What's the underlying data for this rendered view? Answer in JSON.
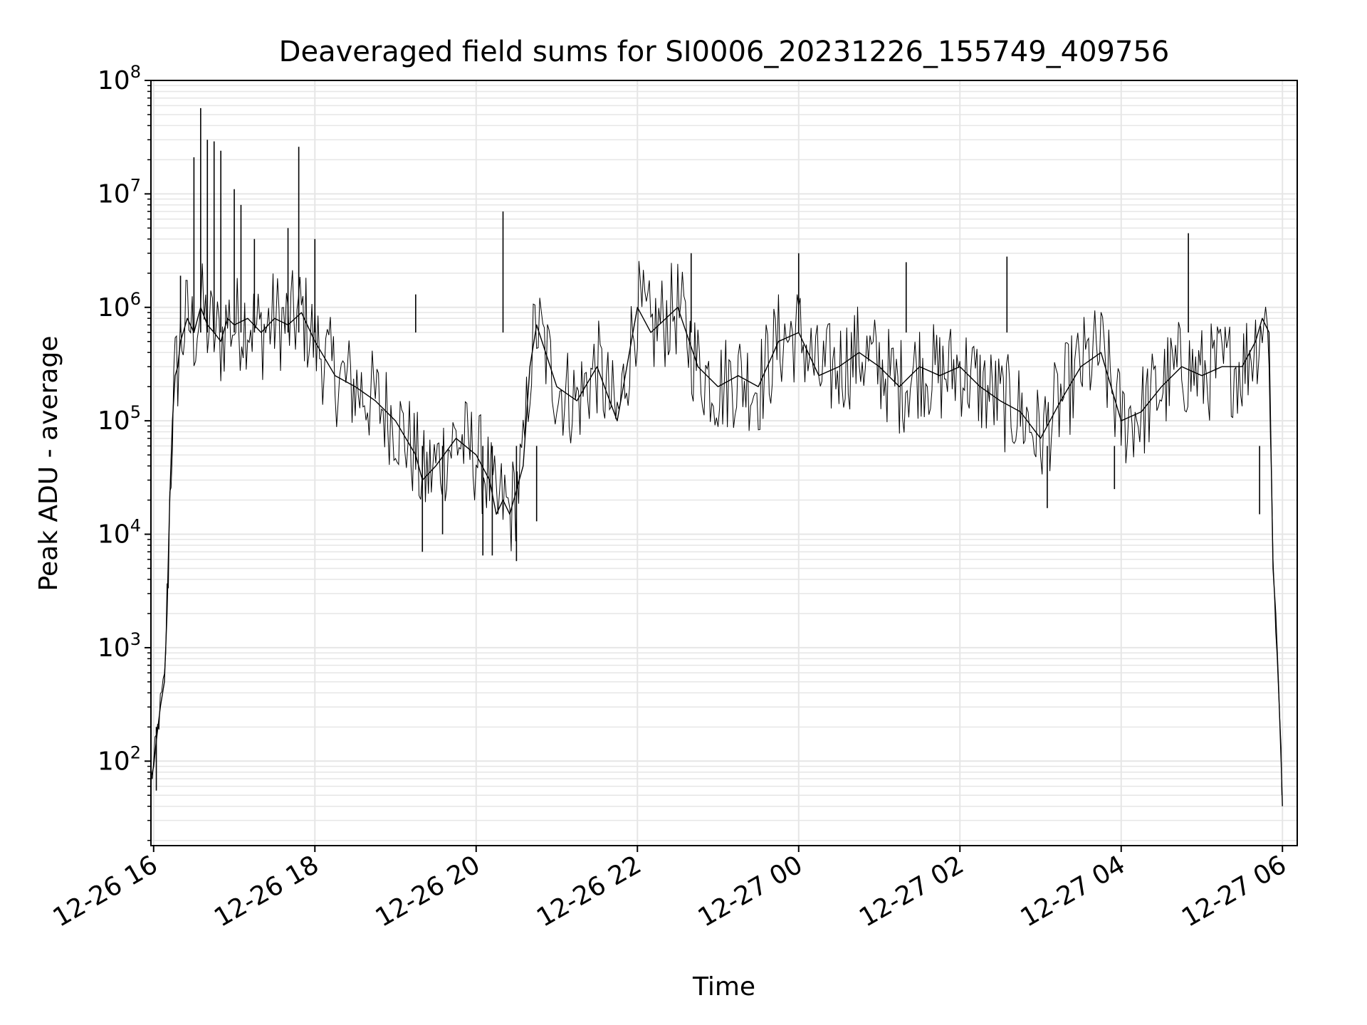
{
  "chart_data": {
    "type": "line",
    "title": "Deaveraged field sums for SI0006_20231226_155749_409756",
    "xlabel": "Time",
    "ylabel": "Peak ADU - average",
    "yscale": "log",
    "ylim": [
      18,
      100000000
    ],
    "xlim": [
      "2023-12-26 15:58",
      "2023-12-27 06:11"
    ],
    "grid": true,
    "legend": "none",
    "line_color": "#000000",
    "grid_color": "#e6e6e6",
    "x_ticks": [
      {
        "value": "2023-12-26 16:00",
        "label": "12-26 16"
      },
      {
        "value": "2023-12-26 18:00",
        "label": "12-26 18"
      },
      {
        "value": "2023-12-26 20:00",
        "label": "12-26 20"
      },
      {
        "value": "2023-12-26 22:00",
        "label": "12-26 22"
      },
      {
        "value": "2023-12-27 00:00",
        "label": "12-27 00"
      },
      {
        "value": "2023-12-27 02:00",
        "label": "12-27 02"
      },
      {
        "value": "2023-12-27 04:00",
        "label": "12-27 04"
      },
      {
        "value": "2023-12-27 06:00",
        "label": "12-27 06"
      }
    ],
    "y_ticks": [
      {
        "value": 100,
        "base": "10",
        "exp": "2"
      },
      {
        "value": 1000,
        "base": "10",
        "exp": "3"
      },
      {
        "value": 10000,
        "base": "10",
        "exp": "4"
      },
      {
        "value": 100000,
        "base": "10",
        "exp": "5"
      },
      {
        "value": 1000000,
        "base": "10",
        "exp": "6"
      },
      {
        "value": 10000000,
        "base": "10",
        "exp": "7"
      },
      {
        "value": 100000000,
        "base": "10",
        "exp": "8"
      }
    ],
    "series": [
      {
        "x": [
          "2023-12-26 15:58",
          "2023-12-26 16:00",
          "2023-12-26 16:02",
          "2023-12-26 16:05",
          "2023-12-26 16:08",
          "2023-12-26 16:10",
          "2023-12-26 16:12",
          "2023-12-26 16:14",
          "2023-12-26 16:16",
          "2023-12-26 16:18",
          "2023-12-26 16:20",
          "2023-12-26 16:22",
          "2023-12-26 16:25",
          "2023-12-26 16:30",
          "2023-12-26 16:35",
          "2023-12-26 16:40",
          "2023-12-26 16:45",
          "2023-12-26 16:50",
          "2023-12-26 16:55",
          "2023-12-26 17:00",
          "2023-12-26 17:10",
          "2023-12-26 17:20",
          "2023-12-26 17:30",
          "2023-12-26 17:40",
          "2023-12-26 17:50",
          "2023-12-26 18:00",
          "2023-12-26 18:15",
          "2023-12-26 18:30",
          "2023-12-26 18:45",
          "2023-12-26 19:00",
          "2023-12-26 19:15",
          "2023-12-26 19:20",
          "2023-12-26 19:30",
          "2023-12-26 19:45",
          "2023-12-26 20:00",
          "2023-12-26 20:10",
          "2023-12-26 20:15",
          "2023-12-26 20:20",
          "2023-12-26 20:25",
          "2023-12-26 20:35",
          "2023-12-26 20:40",
          "2023-12-26 20:45",
          "2023-12-26 21:00",
          "2023-12-26 21:15",
          "2023-12-26 21:30",
          "2023-12-26 21:45",
          "2023-12-26 22:00",
          "2023-12-26 22:10",
          "2023-12-26 22:30",
          "2023-12-26 22:45",
          "2023-12-26 23:00",
          "2023-12-26 23:15",
          "2023-12-26 23:30",
          "2023-12-26 23:45",
          "2023-12-27 00:00",
          "2023-12-27 00:15",
          "2023-12-27 00:30",
          "2023-12-27 00:45",
          "2023-12-27 01:00",
          "2023-12-27 01:15",
          "2023-12-27 01:30",
          "2023-12-27 01:45",
          "2023-12-27 02:00",
          "2023-12-27 02:15",
          "2023-12-27 02:30",
          "2023-12-27 02:45",
          "2023-12-27 03:00",
          "2023-12-27 03:15",
          "2023-12-27 03:30",
          "2023-12-27 03:45",
          "2023-12-27 04:00",
          "2023-12-27 04:15",
          "2023-12-27 04:30",
          "2023-12-27 04:45",
          "2023-12-27 05:00",
          "2023-12-27 05:15",
          "2023-12-27 05:30",
          "2023-12-27 05:40",
          "2023-12-27 05:45",
          "2023-12-27 05:50",
          "2023-12-27 05:53",
          "2023-12-27 05:55",
          "2023-12-27 05:57",
          "2023-12-27 05:59",
          "2023-12-27 06:00"
        ],
        "y": [
          70,
          90,
          150,
          300,
          500,
          2000,
          20000,
          100000,
          250000,
          300000,
          500000,
          600000,
          800000,
          600000,
          1000000,
          700000,
          600000,
          500000,
          800000,
          700000,
          800000,
          600000,
          800000,
          700000,
          900000,
          500000,
          250000,
          200000,
          150000,
          100000,
          50000,
          30000,
          40000,
          70000,
          50000,
          30000,
          15000,
          20000,
          15000,
          40000,
          300000,
          700000,
          200000,
          150000,
          300000,
          100000,
          1000000,
          600000,
          1000000,
          300000,
          200000,
          250000,
          200000,
          500000,
          600000,
          250000,
          300000,
          400000,
          300000,
          200000,
          300000,
          250000,
          300000,
          200000,
          150000,
          120000,
          70000,
          150000,
          300000,
          400000,
          100000,
          120000,
          200000,
          300000,
          250000,
          300000,
          300000,
          500000,
          800000,
          600000,
          5000,
          2000,
          500,
          100,
          40
        ]
      }
    ],
    "spikes": [
      {
        "x": "2023-12-26 16:20",
        "y": 1900000
      },
      {
        "x": "2023-12-26 16:30",
        "y": 21000000
      },
      {
        "x": "2023-12-26 16:35",
        "y": 57000000
      },
      {
        "x": "2023-12-26 16:40",
        "y": 30000000
      },
      {
        "x": "2023-12-26 16:45",
        "y": 29000000
      },
      {
        "x": "2023-12-26 16:50",
        "y": 24000000
      },
      {
        "x": "2023-12-26 17:00",
        "y": 11000000
      },
      {
        "x": "2023-12-26 17:05",
        "y": 8000000
      },
      {
        "x": "2023-12-26 17:15",
        "y": 4000000
      },
      {
        "x": "2023-12-26 17:40",
        "y": 5000000
      },
      {
        "x": "2023-12-26 17:48",
        "y": 26000000
      },
      {
        "x": "2023-12-26 18:00",
        "y": 4000000
      },
      {
        "x": "2023-12-26 19:15",
        "y": 1300000
      },
      {
        "x": "2023-12-26 20:20",
        "y": 7000000
      },
      {
        "x": "2023-12-26 22:40",
        "y": 3000000
      },
      {
        "x": "2023-12-27 00:00",
        "y": 3000000
      },
      {
        "x": "2023-12-27 01:20",
        "y": 2500000
      },
      {
        "x": "2023-12-27 02:35",
        "y": 2800000
      },
      {
        "x": "2023-12-27 04:50",
        "y": 4500000
      }
    ],
    "dips": [
      {
        "x": "2023-12-26 16:02",
        "y": 55
      },
      {
        "x": "2023-12-26 19:20",
        "y": 7000
      },
      {
        "x": "2023-12-26 19:35",
        "y": 10000
      },
      {
        "x": "2023-12-26 20:05",
        "y": 6500
      },
      {
        "x": "2023-12-26 20:12",
        "y": 6500
      },
      {
        "x": "2023-12-26 20:30",
        "y": 5800
      },
      {
        "x": "2023-12-26 20:45",
        "y": 13000
      },
      {
        "x": "2023-12-27 03:05",
        "y": 17000
      },
      {
        "x": "2023-12-27 03:55",
        "y": 25000
      },
      {
        "x": "2023-12-27 05:43",
        "y": 15000
      }
    ]
  }
}
